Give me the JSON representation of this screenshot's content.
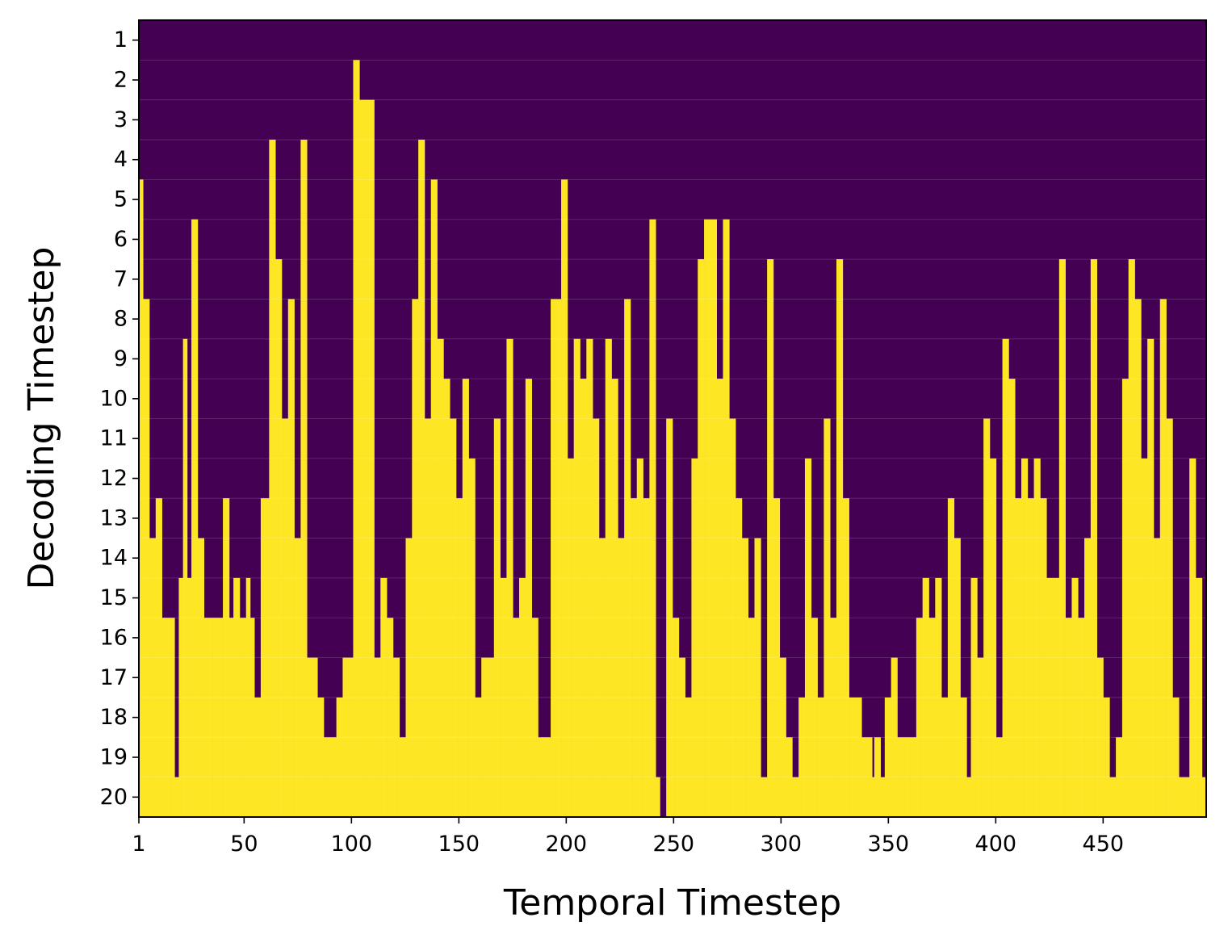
{
  "chart_data": {
    "type": "heatmap",
    "title": "",
    "xlabel": "Temporal Timestep",
    "ylabel": "Decoding Timestep",
    "x_tick_labels": [
      "1",
      "50",
      "100",
      "150",
      "200",
      "250",
      "300",
      "350",
      "400",
      "450"
    ],
    "y_tick_labels": [
      "1",
      "2",
      "3",
      "4",
      "5",
      "6",
      "7",
      "8",
      "9",
      "10",
      "11",
      "12",
      "13",
      "14",
      "15",
      "16",
      "17",
      "18",
      "19",
      "20"
    ],
    "x_range": [
      1,
      498
    ],
    "y_range": [
      1,
      20
    ],
    "grid": false,
    "legend": "none",
    "colors": {
      "unmasked": "#fde725",
      "masked": "#440154"
    },
    "note_values": "decoded_at[i] = first decoding step at which temporal token i becomes unmasked (yellow); token stays unmasked for all later steps; value 21 = not unmasked within 20 steps",
    "decoded_at": [
      5,
      5,
      8,
      8,
      8,
      14,
      14,
      14,
      13,
      13,
      13,
      16,
      16,
      16,
      16,
      16,
      16,
      20,
      20,
      15,
      15,
      9,
      9,
      15,
      15,
      6,
      6,
      6,
      14,
      14,
      14,
      16,
      16,
      16,
      16,
      16,
      16,
      16,
      16,
      16,
      13,
      13,
      13,
      16,
      16,
      15,
      15,
      15,
      16,
      16,
      16,
      15,
      15,
      16,
      16,
      18,
      18,
      18,
      13,
      13,
      13,
      13,
      4,
      4,
      4,
      7,
      7,
      7,
      11,
      11,
      11,
      8,
      8,
      8,
      14,
      14,
      14,
      4,
      4,
      4,
      17,
      17,
      17,
      17,
      17,
      18,
      18,
      18,
      19,
      19,
      19,
      19,
      19,
      19,
      18,
      18,
      18,
      17,
      17,
      17,
      17,
      17,
      2,
      2,
      2,
      3,
      3,
      3,
      3,
      3,
      3,
      3,
      17,
      17,
      17,
      15,
      15,
      15,
      16,
      16,
      16,
      17,
      17,
      17,
      19,
      19,
      19,
      14,
      14,
      14,
      8,
      8,
      8,
      4,
      4,
      4,
      11,
      11,
      11,
      5,
      5,
      5,
      9,
      9,
      9,
      10,
      10,
      10,
      11,
      11,
      11,
      13,
      13,
      13,
      10,
      10,
      10,
      12,
      12,
      12,
      18,
      18,
      18,
      17,
      17,
      17,
      17,
      17,
      17,
      11,
      11,
      11,
      15,
      15,
      15,
      9,
      9,
      9,
      16,
      16,
      16,
      15,
      15,
      15,
      10,
      10,
      10,
      16,
      16,
      16,
      19,
      19,
      19,
      19,
      19,
      19,
      8,
      8,
      8,
      8,
      8,
      5,
      5,
      5,
      12,
      12,
      12,
      9,
      9,
      9,
      10,
      10,
      10,
      9,
      9,
      9,
      11,
      11,
      11,
      14,
      14,
      14,
      9,
      9,
      9,
      10,
      10,
      10,
      14,
      14,
      14,
      8,
      8,
      8,
      13,
      13,
      13,
      12,
      12,
      12,
      13,
      13,
      13,
      6,
      6,
      6,
      20,
      20,
      21,
      21,
      21,
      11,
      11,
      11,
      16,
      16,
      16,
      17,
      17,
      17,
      18,
      18,
      18,
      12,
      12,
      12,
      7,
      7,
      7,
      6,
      6,
      6,
      6,
      6,
      6,
      10,
      10,
      10,
      6,
      6,
      6,
      11,
      11,
      11,
      13,
      13,
      13,
      14,
      14,
      14,
      16,
      16,
      16,
      14,
      14,
      14,
      20,
      20,
      20,
      7,
      7,
      7,
      13,
      13,
      13,
      17,
      17,
      17,
      19,
      19,
      19,
      20,
      20,
      20,
      18,
      18,
      18,
      12,
      12,
      12,
      16,
      16,
      16,
      18,
      18,
      18,
      11,
      11,
      11,
      16,
      16,
      16,
      7,
      7,
      7,
      13,
      13,
      13,
      18,
      18,
      18,
      18,
      18,
      18,
      19,
      19,
      19,
      19,
      19,
      20,
      19,
      19,
      19,
      20,
      20,
      18,
      18,
      18,
      17,
      17,
      17,
      19,
      19,
      19,
      19,
      19,
      19,
      19,
      19,
      19,
      16,
      16,
      16,
      15,
      15,
      15,
      16,
      16,
      16,
      15,
      15,
      15,
      18,
      18,
      18,
      13,
      13,
      13,
      14,
      14,
      14,
      18,
      18,
      18,
      20,
      20,
      15,
      15,
      15,
      17,
      17,
      17,
      11,
      11,
      11,
      12,
      12,
      12,
      19,
      19,
      19,
      9,
      9,
      9,
      10,
      10,
      10,
      13,
      13,
      13,
      12,
      12,
      12,
      13,
      13,
      13,
      12,
      12,
      12,
      13,
      13,
      13,
      15,
      15,
      15,
      15,
      15,
      15,
      7,
      7,
      7,
      16,
      16,
      16,
      15,
      15,
      15,
      16,
      16,
      16,
      14,
      14,
      14,
      7,
      7,
      7,
      17,
      17,
      17,
      18,
      18,
      18,
      20,
      20,
      20,
      19,
      19,
      19,
      10,
      10,
      10,
      7,
      7,
      7,
      8,
      8,
      8,
      12,
      12,
      12,
      9,
      9,
      9,
      14,
      14,
      14,
      8,
      8,
      8,
      11,
      11,
      11,
      18,
      18,
      18,
      20,
      20,
      20,
      20,
      20,
      12,
      12,
      12,
      15,
      15,
      15,
      20,
      20
    ]
  }
}
